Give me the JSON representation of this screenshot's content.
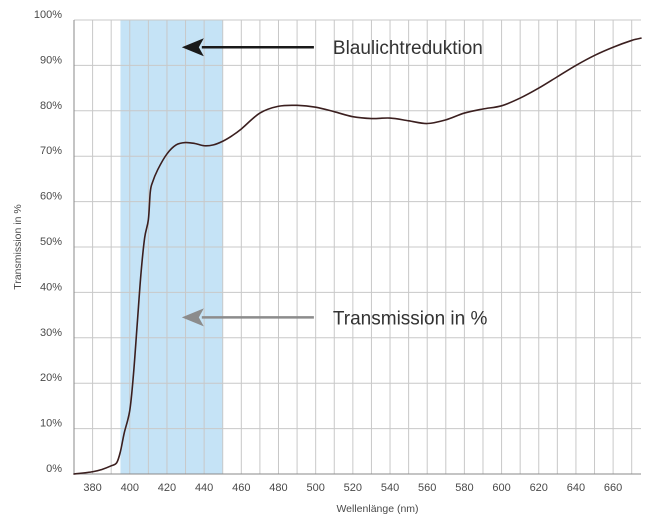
{
  "chart_data": {
    "type": "line",
    "title": "",
    "xlabel": "Wellenlänge (nm)",
    "ylabel": "Transmission in %",
    "xlim": [
      370,
      675
    ],
    "ylim": [
      0,
      100
    ],
    "x_ticks": [
      380,
      400,
      420,
      440,
      460,
      480,
      500,
      520,
      540,
      560,
      580,
      600,
      620,
      640,
      660
    ],
    "y_ticks": [
      0,
      10,
      20,
      30,
      40,
      50,
      60,
      70,
      80,
      90,
      100
    ],
    "y_tick_labels": [
      "0%",
      "10%",
      "20%",
      "30%",
      "40%",
      "50%",
      "60%",
      "70%",
      "80%",
      "90%",
      "100%"
    ],
    "grid": true,
    "colors": {
      "line": "#3b1f1f",
      "grid": "#c8c8c8",
      "axis": "#8a8a8a",
      "band": "#c5e3f6",
      "arrow_dark": "#1a1a1a",
      "arrow_light": "#8c8c8c"
    },
    "highlight_band": {
      "x_from": 395,
      "x_to": 450
    },
    "series": [
      {
        "x": [
          370,
          380,
          385,
          390,
          393,
          395,
          397,
          400,
          402,
          404,
          406,
          408,
          410,
          411,
          412,
          415,
          420,
          425,
          430,
          435,
          440,
          445,
          450,
          455,
          460,
          470,
          480,
          490,
          500,
          510,
          520,
          530,
          540,
          550,
          560,
          570,
          580,
          590,
          600,
          610,
          620,
          630,
          640,
          650,
          660,
          670,
          675
        ],
        "y": [
          0,
          0.5,
          1.0,
          1.8,
          2.5,
          5,
          9,
          14,
          22,
          33,
          44,
          52,
          56,
          62,
          64,
          67,
          70.5,
          72.5,
          73,
          72.8,
          72.3,
          72.5,
          73.3,
          74.5,
          76,
          79.5,
          81,
          81.2,
          80.8,
          79.8,
          78.7,
          78.3,
          78.4,
          77.8,
          77.2,
          78,
          79.5,
          80.4,
          81.1,
          82.8,
          85,
          87.5,
          90,
          92.2,
          94,
          95.5,
          96
        ]
      }
    ],
    "annotations": [
      {
        "id": "band",
        "text": "Blaulichtreduktion",
        "arrow_tip_x": 428,
        "arrow_tail_x": 470,
        "y": 94,
        "style": "dark"
      },
      {
        "id": "curve",
        "text": "Transmission in %",
        "arrow_tip_x": 428,
        "arrow_tail_x": 470,
        "y": 34.5,
        "style": "light"
      }
    ]
  }
}
